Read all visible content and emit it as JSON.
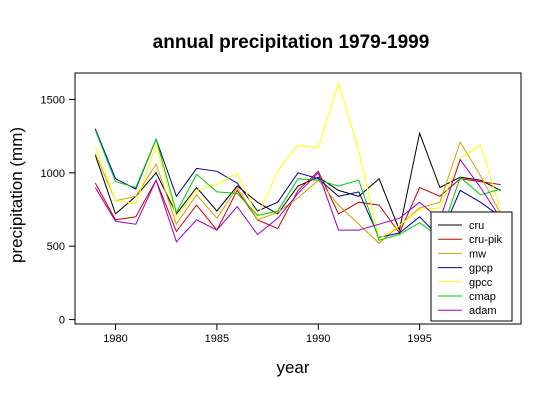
{
  "chart_data": {
    "type": "line",
    "title": "annual precipitation 1979-1999",
    "xlabel": "year",
    "ylabel": "precipitation (mm)",
    "xlim": [
      1978,
      2000
    ],
    "ylim": [
      -30,
      1680
    ],
    "x_ticks": [
      1980,
      1985,
      1990,
      1995
    ],
    "y_ticks": [
      0,
      500,
      1000,
      1500
    ],
    "legend_position": "bottom-right",
    "grid": false,
    "x": [
      1979,
      1980,
      1981,
      1982,
      1983,
      1984,
      1985,
      1986,
      1987,
      1988,
      1989,
      1990,
      1991,
      1992,
      1993,
      1994,
      1995,
      1996,
      1997,
      1998,
      1999
    ],
    "series": [
      {
        "name": "cru",
        "color": "#000000",
        "values": [
          1120,
          720,
          840,
          1000,
          720,
          900,
          740,
          910,
          800,
          720,
          910,
          970,
          880,
          840,
          960,
          610,
          1270,
          900,
          970,
          950,
          880
        ]
      },
      {
        "name": "cru-pik",
        "color": "#cc0000",
        "values": [
          930,
          680,
          700,
          950,
          600,
          780,
          610,
          880,
          680,
          620,
          880,
          1010,
          720,
          800,
          780,
          590,
          900,
          840,
          960,
          940,
          920
        ]
      },
      {
        "name": "mw",
        "color": "#d4a000",
        "values": [
          1130,
          810,
          840,
          1060,
          650,
          850,
          690,
          900,
          680,
          730,
          830,
          950,
          780,
          650,
          520,
          640,
          760,
          800,
          1210,
          980,
          720
        ]
      },
      {
        "name": "gpcp",
        "color": "#000099",
        "values": [
          1300,
          960,
          890,
          1230,
          840,
          1030,
          1010,
          930,
          740,
          800,
          1000,
          960,
          840,
          870,
          560,
          590,
          700,
          560,
          880,
          800,
          700
        ]
      },
      {
        "name": "gpcc",
        "color": "#ffff00",
        "values": [
          1180,
          810,
          790,
          1190,
          700,
          880,
          920,
          1000,
          700,
          1010,
          1190,
          1170,
          1610,
          1150,
          550,
          640,
          750,
          760,
          1100,
          1190,
          740
        ]
      },
      {
        "name": "cmap",
        "color": "#00cc00",
        "values": [
          1290,
          940,
          900,
          1230,
          730,
          990,
          870,
          860,
          710,
          740,
          960,
          950,
          910,
          950,
          540,
          580,
          660,
          560,
          970,
          850,
          890
        ]
      },
      {
        "name": "adam",
        "color": "#9900cc",
        "values": [
          900,
          670,
          650,
          950,
          530,
          680,
          610,
          770,
          580,
          690,
          860,
          1000,
          610,
          610,
          650,
          690,
          800,
          680,
          1090,
          900,
          690
        ]
      }
    ]
  }
}
